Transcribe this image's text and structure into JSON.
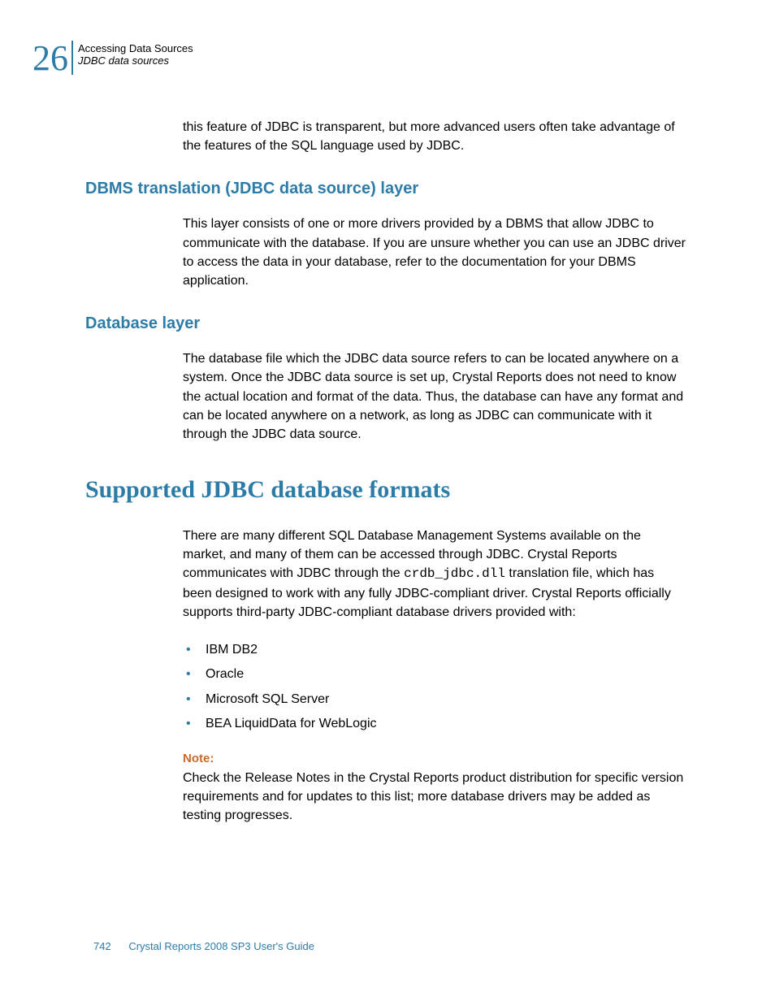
{
  "header": {
    "chapter_number": "26",
    "title": "Accessing Data Sources",
    "subtitle": "JDBC data sources"
  },
  "intro_para": "this feature of JDBC is transparent, but more advanced users often take advantage of the features of the SQL language used by JDBC.",
  "section_dbms": {
    "heading": "DBMS translation (JDBC data source) layer",
    "body": "This layer consists of one or more drivers provided by a DBMS that allow JDBC to communicate with the database. If you are unsure whether you can use an JDBC driver to access the data in your database, refer to the documentation for your DBMS application."
  },
  "section_dblayer": {
    "heading": "Database layer",
    "body": "The database file which the JDBC data source refers to can be located anywhere on a system. Once the JDBC data source is set up, Crystal Reports does not need to know the actual location and format of the data. Thus, the database can have any format and can be located anywhere on a network, as long as JDBC can communicate with it through the JDBC data source."
  },
  "section_supported": {
    "heading": "Supported JDBC database formats",
    "body_pre": "There are many different SQL Database Management Systems available on the market, and many of them can be accessed through JDBC. Crystal Reports communicates with JDBC through the ",
    "code": "crdb_jdbc.dll",
    "body_post": " translation file, which has been designed to work with any fully JDBC-compliant driver. Crystal Reports officially supports third-party JDBC-compliant database drivers provided with:",
    "list": {
      "item1": "IBM DB2",
      "item2": "Oracle",
      "item3": "Microsoft SQL Server",
      "item4": "BEA LiquidData for WebLogic"
    },
    "note_label": "Note:",
    "note_body": "Check the Release Notes in the Crystal Reports product distribution for specific version requirements and for updates to this list; more database drivers may be added as testing progresses."
  },
  "footer": {
    "page_number": "742",
    "guide_title": "Crystal Reports 2008 SP3 User's Guide"
  }
}
